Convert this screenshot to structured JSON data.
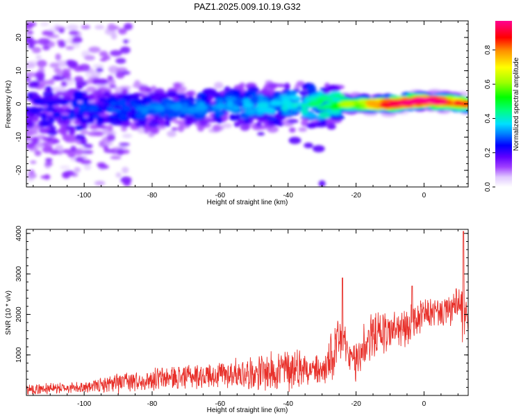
{
  "figure": {
    "title": "PAZ1.2025.009.10.19.G32"
  },
  "chart_data": [
    {
      "type": "heatmap",
      "xlabel": "Height of straight line (km)",
      "ylabel": "Frequency (Hz)",
      "xlim": [
        -117,
        13
      ],
      "ylim": [
        -25,
        25
      ],
      "x_ticks": [
        -100,
        -80,
        -60,
        -40,
        -20,
        0
      ],
      "x_tick_labels": [
        "-100",
        "-80",
        "-60",
        "-40",
        "-20",
        "0"
      ],
      "y_ticks": [
        -20,
        -10,
        0,
        10,
        20
      ],
      "y_tick_labels": [
        "-20",
        "-10",
        "0",
        "10",
        "20"
      ],
      "colorbar": {
        "label": "Normalized spectral amplitude",
        "range": [
          0,
          0.97
        ],
        "ticks": [
          0.0,
          0.2,
          0.4,
          0.6,
          0.8
        ],
        "tick_labels": [
          "0.0",
          "0.2",
          "0.4",
          "0.6",
          "0.8"
        ],
        "colors": [
          "#ffffff",
          "#c080ff",
          "#8000ff",
          "#0000ff",
          "#00d0ff",
          "#00ff40",
          "#c0ff00",
          "#ffff00",
          "#ff8000",
          "#ff0000",
          "#ff0080"
        ]
      },
      "ridge": {
        "description_points_x": [
          -117,
          -100,
          -80,
          -60,
          -40,
          -30,
          -20,
          -10,
          0,
          13
        ],
        "center_freq_hz": [
          -2,
          -2,
          -1.5,
          -0.5,
          -0.5,
          0,
          0,
          0,
          1,
          0
        ],
        "peak_amplitude": [
          0.2,
          0.25,
          0.28,
          0.3,
          0.35,
          0.45,
          0.6,
          0.85,
          0.9,
          0.75
        ]
      }
    },
    {
      "type": "line",
      "xlabel": "Height of straight line (km)",
      "ylabel": "SNR (10 * v/v)",
      "xlim": [
        -117,
        13
      ],
      "ylim": [
        0,
        4100
      ],
      "x_ticks": [
        -100,
        -80,
        -60,
        -40,
        -20,
        0
      ],
      "x_tick_labels": [
        "-100",
        "-80",
        "-60",
        "-40",
        "-20",
        "0"
      ],
      "y_ticks": [
        1000,
        2000,
        3000,
        4000
      ],
      "y_tick_labels": [
        "1000",
        "2000",
        "3000",
        "4000"
      ],
      "color": "#e8302a",
      "envelope": {
        "x": [
          -117,
          -110,
          -100,
          -95,
          -90,
          -80,
          -70,
          -60,
          -50,
          -45,
          -40,
          -35,
          -30,
          -27,
          -25,
          -24,
          -22,
          -20,
          -18,
          -15,
          -10,
          -5,
          -3,
          0,
          5,
          8,
          10,
          11,
          11.5,
          12,
          13
        ],
        "mean": [
          150,
          170,
          200,
          250,
          300,
          400,
          470,
          520,
          560,
          600,
          650,
          700,
          600,
          900,
          1200,
          1500,
          900,
          800,
          1200,
          1500,
          1600,
          1650,
          1800,
          2000,
          2050,
          2100,
          2300,
          2000,
          2300,
          2050,
          1700
        ],
        "amplitude": [
          150,
          150,
          150,
          200,
          300,
          300,
          350,
          400,
          450,
          550,
          650,
          500,
          400,
          800,
          900,
          700,
          400,
          700,
          700,
          600,
          600,
          550,
          600,
          400,
          400,
          450,
          500,
          900,
          1300,
          600,
          300
        ]
      }
    }
  ]
}
